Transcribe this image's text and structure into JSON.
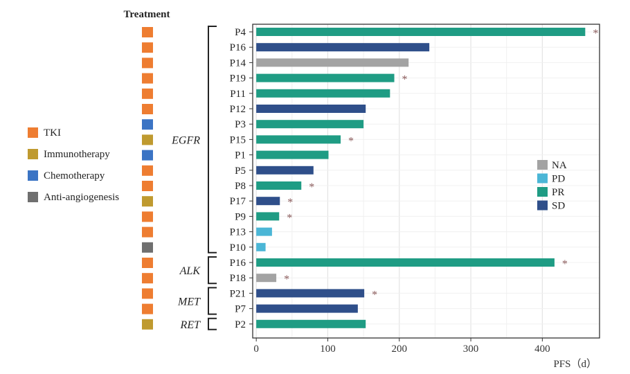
{
  "chart_data": {
    "type": "bar",
    "orientation": "horizontal",
    "title": "",
    "xlabel": "PFS（d）",
    "ylabel": "",
    "xlim": [
      -5,
      480
    ],
    "xticks": [
      0,
      100,
      200,
      300,
      400
    ],
    "grid": true,
    "legend_placement": "right",
    "treatment_header": "Treatment",
    "treatment_legend": [
      {
        "key": "TKI",
        "label": "TKI"
      },
      {
        "key": "Immunotherapy",
        "label": "Immunotherapy"
      },
      {
        "key": "Chemotherapy",
        "label": "Chemotherapy"
      },
      {
        "key": "Anti-angiogenesis",
        "label": "Anti-angiogenesis"
      }
    ],
    "treatment_colors": {
      "TKI": "#ee7d31",
      "Immunotherapy": "#bf9a2f",
      "Chemotherapy": "#3b74c4",
      "Anti-angiogenesis": "#6f6f6f"
    },
    "response_legend": [
      {
        "key": "NA",
        "label": "NA"
      },
      {
        "key": "PD",
        "label": "PD"
      },
      {
        "key": "PR",
        "label": "PR"
      },
      {
        "key": "SD",
        "label": "SD"
      }
    ],
    "response_colors": {
      "NA": "#a3a3a3",
      "PD": "#4bb6d6",
      "PR": "#1f9c84",
      "SD": "#2f4f8a"
    },
    "marker_symbol": "*",
    "groups": [
      {
        "name": "EGFR",
        "count": 15
      },
      {
        "name": "ALK",
        "count": 2
      },
      {
        "name": "MET",
        "count": 2
      },
      {
        "name": "RET",
        "count": 1
      }
    ],
    "patients": [
      {
        "label": "P4",
        "group": "EGFR",
        "pfs": 460,
        "response": "PR",
        "treatment": "TKI",
        "marker": true
      },
      {
        "label": "P16",
        "group": "EGFR",
        "pfs": 242,
        "response": "SD",
        "treatment": "TKI",
        "marker": false
      },
      {
        "label": "P14",
        "group": "EGFR",
        "pfs": 213,
        "response": "NA",
        "treatment": "TKI",
        "marker": false
      },
      {
        "label": "P19",
        "group": "EGFR",
        "pfs": 193,
        "response": "PR",
        "treatment": "TKI",
        "marker": true
      },
      {
        "label": "P11",
        "group": "EGFR",
        "pfs": 187,
        "response": "PR",
        "treatment": "TKI",
        "marker": false
      },
      {
        "label": "P12",
        "group": "EGFR",
        "pfs": 153,
        "response": "SD",
        "treatment": "TKI",
        "marker": false
      },
      {
        "label": "P3",
        "group": "EGFR",
        "pfs": 150,
        "response": "PR",
        "treatment": "Chemotherapy",
        "marker": false
      },
      {
        "label": "P15",
        "group": "EGFR",
        "pfs": 118,
        "response": "PR",
        "treatment": "Immunotherapy",
        "marker": true
      },
      {
        "label": "P1",
        "group": "EGFR",
        "pfs": 101,
        "response": "PR",
        "treatment": "Chemotherapy",
        "marker": false
      },
      {
        "label": "P5",
        "group": "EGFR",
        "pfs": 80,
        "response": "SD",
        "treatment": "TKI",
        "marker": false
      },
      {
        "label": "P8",
        "group": "EGFR",
        "pfs": 63,
        "response": "PR",
        "treatment": "TKI",
        "marker": true
      },
      {
        "label": "P17",
        "group": "EGFR",
        "pfs": 33,
        "response": "SD",
        "treatment": "Immunotherapy",
        "marker": true
      },
      {
        "label": "P9",
        "group": "EGFR",
        "pfs": 32,
        "response": "PR",
        "treatment": "TKI",
        "marker": true
      },
      {
        "label": "P13",
        "group": "EGFR",
        "pfs": 22,
        "response": "PD",
        "treatment": "TKI",
        "marker": false
      },
      {
        "label": "P10",
        "group": "EGFR",
        "pfs": 13,
        "response": "PD",
        "treatment": "Anti-angiogenesis",
        "marker": false
      },
      {
        "label": "P16",
        "group": "ALK",
        "pfs": 417,
        "response": "PR",
        "treatment": "TKI",
        "marker": true
      },
      {
        "label": "P18",
        "group": "ALK",
        "pfs": 28,
        "response": "NA",
        "treatment": "TKI",
        "marker": true
      },
      {
        "label": "P21",
        "group": "MET",
        "pfs": 151,
        "response": "SD",
        "treatment": "TKI",
        "marker": true
      },
      {
        "label": "P7",
        "group": "MET",
        "pfs": 142,
        "response": "SD",
        "treatment": "TKI",
        "marker": false
      },
      {
        "label": "P2",
        "group": "RET",
        "pfs": 153,
        "response": "PR",
        "treatment": "Immunotherapy",
        "marker": false
      }
    ]
  }
}
